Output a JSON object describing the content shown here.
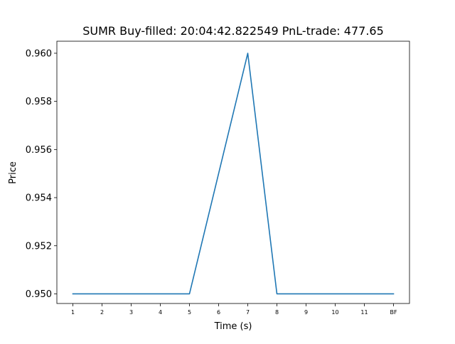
{
  "chart_data": {
    "type": "line",
    "title": "SUMR  Buy-filled:  20:04:42.822549  PnL-trade:  477.65",
    "xlabel": "Time (s)",
    "ylabel": "Price",
    "categories": [
      "1",
      "2",
      "3",
      "4",
      "5",
      "6",
      "7",
      "8",
      "9",
      "10",
      "11",
      "BF"
    ],
    "series": [
      {
        "values": [
          0.95,
          0.95,
          0.95,
          0.95,
          0.95,
          0.955,
          0.96,
          0.95,
          0.95,
          0.95,
          0.95,
          0.95
        ],
        "color": "#1f77b4"
      }
    ],
    "ylim": [
      0.9496,
      0.9605
    ],
    "yticks": [
      "0.950",
      "0.952",
      "0.954",
      "0.956",
      "0.958",
      "0.960"
    ],
    "grid": false,
    "legend": "none"
  }
}
